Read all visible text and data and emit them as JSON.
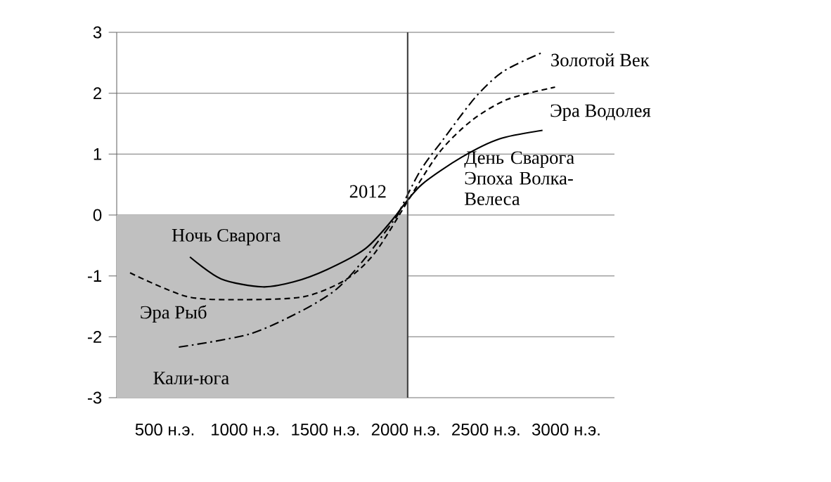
{
  "chart_data": {
    "type": "line",
    "xlim": [
      200,
      3300
    ],
    "ylim": [
      -3,
      3
    ],
    "xticks": [
      {
        "value": 500,
        "label": "500 н.э."
      },
      {
        "value": 1000,
        "label": "1000 н.э."
      },
      {
        "value": 1500,
        "label": "1500 н.э."
      },
      {
        "value": 2000,
        "label": "2000 н.э."
      },
      {
        "value": 2500,
        "label": "2500 н.э."
      },
      {
        "value": 3000,
        "label": "3000 н.э."
      }
    ],
    "yticks": [
      -3,
      -2,
      -1,
      0,
      1,
      2,
      3
    ],
    "grid": "y",
    "series": [
      {
        "name": "Ночь Сварога",
        "color": "#000000",
        "line_style": "solid",
        "x": [
          656,
          850,
          1108,
          1300,
          1507,
          1750,
          1941
        ],
        "values": [
          -0.69,
          -1.05,
          -1.18,
          -1.1,
          -0.9,
          -0.55,
          0
        ]
      },
      {
        "name": "День Сварога Эпоха  Волка-Велеса",
        "color": "#000000",
        "line_style": "solid",
        "x": [
          1941,
          2100,
          2349,
          2583,
          2852
        ],
        "values": [
          0,
          0.5,
          0.95,
          1.25,
          1.39
        ]
      },
      {
        "name": "Эра Рыб",
        "color": "#000000",
        "line_style": "dashed",
        "x": [
          283,
          639,
          986,
          1368,
          1628,
          1800,
          1960
        ],
        "values": [
          -0.95,
          -1.34,
          -1.39,
          -1.34,
          -1.06,
          -0.65,
          0
        ]
      },
      {
        "name": "Эра Водолея",
        "color": "#000000",
        "line_style": "dashed",
        "x": [
          1960,
          2201,
          2410,
          2635,
          2930
        ],
        "values": [
          0,
          1.0,
          1.55,
          1.9,
          2.1
        ]
      },
      {
        "name": "Кали-юга",
        "color": "#000000",
        "line_style": "dashdot",
        "x": [
          587,
          1020,
          1333,
          1568,
          1750,
          1950
        ],
        "values": [
          -2.17,
          -1.96,
          -1.6,
          -1.22,
          -0.7,
          0
        ]
      },
      {
        "name": "Золотой Век",
        "color": "#000000",
        "line_style": "dashdot",
        "x": [
          1950,
          2089,
          2236,
          2436,
          2609,
          2852
        ],
        "values": [
          0,
          0.72,
          1.25,
          1.94,
          2.36,
          2.67
        ]
      }
    ],
    "bands": [
      {
        "axis": "y",
        "from": -3,
        "to": 0,
        "color": "#c0c0c0"
      }
    ],
    "ref_lines": [
      {
        "axis": "x",
        "value": 2012,
        "label": "2012"
      }
    ]
  }
}
